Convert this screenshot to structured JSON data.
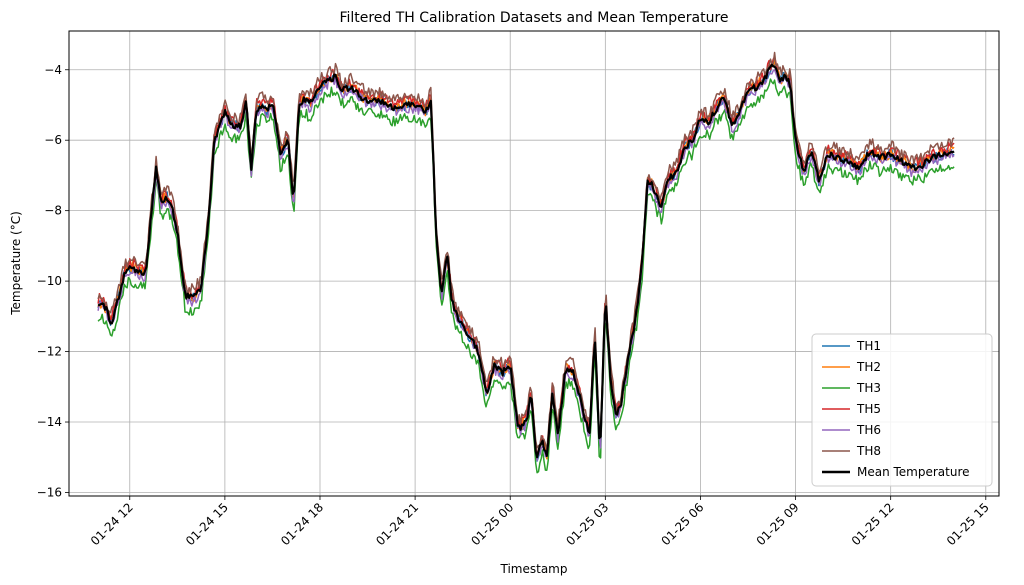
{
  "chart_data": {
    "type": "line",
    "title": "Filtered TH Calibration Datasets and Mean Temperature",
    "xlabel": "Timestamp",
    "ylabel": "Temperature (°C)",
    "x_range": [
      "2024-01-24T10:05",
      "2024-01-25T15:25"
    ],
    "ylim": [
      -16.1,
      -2.9
    ],
    "grid": true,
    "legend_position": "lower-right",
    "x_ticks": [
      "01-24 12",
      "01-24 15",
      "01-24 18",
      "01-24 21",
      "01-25 00",
      "01-25 03",
      "01-25 06",
      "01-25 09",
      "01-25 12",
      "01-25 15"
    ],
    "x_tick_times": [
      "2024-01-24T12:00",
      "2024-01-24T15:00",
      "2024-01-24T18:00",
      "2024-01-24T21:00",
      "2024-01-25T00:00",
      "2024-01-25T03:00",
      "2024-01-25T06:00",
      "2024-01-25T09:00",
      "2024-01-25T12:00",
      "2024-01-25T15:00"
    ],
    "y_ticks": [
      -16,
      -14,
      -12,
      -10,
      -8,
      -6,
      -4
    ],
    "mean_x": [
      "2024-01-24T11:00",
      "2024-01-24T11:15",
      "2024-01-24T11:25",
      "2024-01-24T11:40",
      "2024-01-24T11:50",
      "2024-01-24T12:00",
      "2024-01-24T12:15",
      "2024-01-24T12:30",
      "2024-01-24T12:40",
      "2024-01-24T12:50",
      "2024-01-24T13:00",
      "2024-01-24T13:10",
      "2024-01-24T13:20",
      "2024-01-24T13:30",
      "2024-01-24T13:45",
      "2024-01-24T14:00",
      "2024-01-24T14:15",
      "2024-01-24T14:30",
      "2024-01-24T14:40",
      "2024-01-24T15:00",
      "2024-01-24T15:15",
      "2024-01-24T15:30",
      "2024-01-24T15:40",
      "2024-01-24T15:50",
      "2024-01-24T16:00",
      "2024-01-24T16:15",
      "2024-01-24T16:20",
      "2024-01-24T16:30",
      "2024-01-24T16:45",
      "2024-01-24T17:00",
      "2024-01-24T17:10",
      "2024-01-24T17:20",
      "2024-01-24T17:30",
      "2024-01-24T17:40",
      "2024-01-24T18:00",
      "2024-01-24T18:15",
      "2024-01-24T18:30",
      "2024-01-24T18:40",
      "2024-01-24T19:00",
      "2024-01-24T19:20",
      "2024-01-24T19:40",
      "2024-01-24T20:00",
      "2024-01-24T20:20",
      "2024-01-24T20:40",
      "2024-01-24T21:00",
      "2024-01-24T21:20",
      "2024-01-24T21:30",
      "2024-01-24T21:40",
      "2024-01-24T21:50",
      "2024-01-24T22:00",
      "2024-01-24T22:10",
      "2024-01-24T22:20",
      "2024-01-24T22:40",
      "2024-01-24T23:00",
      "2024-01-24T23:15",
      "2024-01-24T23:30",
      "2024-01-24T23:45",
      "2024-01-25T00:00",
      "2024-01-25T00:15",
      "2024-01-25T00:30",
      "2024-01-25T00:40",
      "2024-01-25T00:50",
      "2024-01-25T01:00",
      "2024-01-25T01:10",
      "2024-01-25T01:20",
      "2024-01-25T01:30",
      "2024-01-25T01:45",
      "2024-01-25T02:00",
      "2024-01-25T02:15",
      "2024-01-25T02:30",
      "2024-01-25T02:40",
      "2024-01-25T02:50",
      "2024-01-25T03:00",
      "2024-01-25T03:10",
      "2024-01-25T03:20",
      "2024-01-25T03:30",
      "2024-01-25T03:40",
      "2024-01-25T04:00",
      "2024-01-25T04:10",
      "2024-01-25T04:20",
      "2024-01-25T04:30",
      "2024-01-25T04:45",
      "2024-01-25T05:00",
      "2024-01-25T05:15",
      "2024-01-25T05:30",
      "2024-01-25T05:45",
      "2024-01-25T06:00",
      "2024-01-25T06:15",
      "2024-01-25T06:30",
      "2024-01-25T06:45",
      "2024-01-25T07:00",
      "2024-01-25T07:15",
      "2024-01-25T07:30",
      "2024-01-25T07:45",
      "2024-01-25T08:00",
      "2024-01-25T08:10",
      "2024-01-25T08:20",
      "2024-01-25T08:30",
      "2024-01-25T08:40",
      "2024-01-25T08:50",
      "2024-01-25T09:00",
      "2024-01-25T09:15",
      "2024-01-25T09:30",
      "2024-01-25T09:45",
      "2024-01-25T10:00",
      "2024-01-25T10:20",
      "2024-01-25T10:40",
      "2024-01-25T11:00",
      "2024-01-25T11:20",
      "2024-01-25T11:40",
      "2024-01-25T12:00",
      "2024-01-25T12:20",
      "2024-01-25T12:40",
      "2024-01-25T13:00",
      "2024-01-25T13:20",
      "2024-01-25T13:40",
      "2024-01-25T14:00"
    ],
    "mean_y": [
      -10.6,
      -10.8,
      -11.2,
      -10.4,
      -9.8,
      -9.6,
      -9.7,
      -9.8,
      -8.2,
      -6.8,
      -7.8,
      -7.6,
      -7.9,
      -8.6,
      -10.4,
      -10.5,
      -10.2,
      -8.1,
      -6.0,
      -5.2,
      -5.6,
      -5.6,
      -4.9,
      -6.8,
      -5.1,
      -5.0,
      -5.2,
      -4.9,
      -6.4,
      -6.0,
      -7.8,
      -5.0,
      -4.8,
      -5.0,
      -4.5,
      -4.3,
      -4.2,
      -4.6,
      -4.5,
      -4.8,
      -4.9,
      -4.9,
      -5.1,
      -5.0,
      -5.0,
      -5.2,
      -4.9,
      -8.7,
      -10.4,
      -9.2,
      -10.6,
      -11.0,
      -11.5,
      -12.0,
      -13.2,
      -12.4,
      -12.6,
      -12.4,
      -14.2,
      -14.0,
      -13.2,
      -15.1,
      -14.5,
      -15.0,
      -13.1,
      -14.4,
      -12.5,
      -12.6,
      -13.5,
      -14.4,
      -11.5,
      -15.0,
      -10.4,
      -12.8,
      -13.8,
      -13.5,
      -12.5,
      -10.8,
      -9.4,
      -7.2,
      -7.3,
      -7.9,
      -7.1,
      -6.9,
      -6.2,
      -6.0,
      -5.4,
      -5.5,
      -5.1,
      -4.8,
      -5.6,
      -5.2,
      -4.6,
      -4.5,
      -4.3,
      -4.0,
      -3.9,
      -4.3,
      -4.2,
      -4.4,
      -6.0,
      -6.9,
      -6.3,
      -7.2,
      -6.4,
      -6.5,
      -6.6,
      -6.8,
      -6.3,
      -6.5,
      -6.4,
      -6.6,
      -6.8,
      -6.7,
      -6.5,
      -6.4,
      -6.3
    ],
    "series": [
      {
        "name": "TH1",
        "color": "#1f77b4",
        "offset": 0.0
      },
      {
        "name": "TH2",
        "color": "#ff7f0e",
        "offset": 0.03
      },
      {
        "name": "TH3",
        "color": "#2ca02c",
        "offset": -0.38
      },
      {
        "name": "TH5",
        "color": "#d62728",
        "offset": 0.12
      },
      {
        "name": "TH6",
        "color": "#9467bd",
        "offset": -0.08
      },
      {
        "name": "TH8",
        "color": "#8c564b",
        "offset": 0.25
      },
      {
        "name": "Mean Temperature",
        "color": "#000000",
        "offset": 0.0
      }
    ]
  }
}
